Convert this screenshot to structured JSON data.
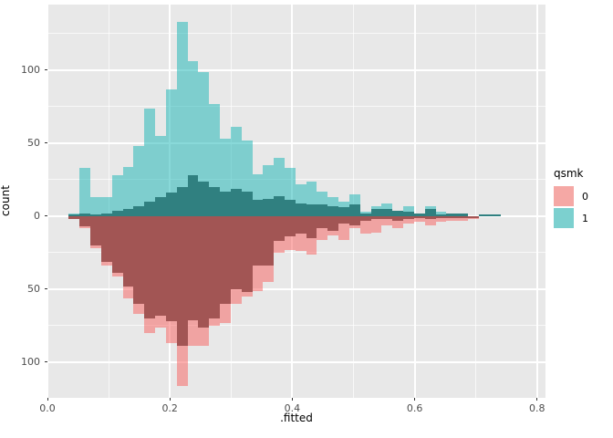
{
  "axis": {
    "x_label": ".fitted",
    "y_label": "count"
  },
  "legend": {
    "title": "qsmk",
    "items": [
      {
        "label": "0",
        "color_key": "legend_red"
      },
      {
        "label": "1",
        "color_key": "legend_teal"
      }
    ]
  },
  "colors": {
    "panel_bg": "#E8E8E8",
    "grid": "#FFFFFF",
    "gray_fill": "#4D4D4D",
    "teal_rgba": "rgba(20,180,180,0.5)",
    "red_rgba": "rgba(248,94,92,0.5)",
    "legend_red": "#F5A8A5",
    "legend_teal": "#7CD0CF",
    "tick_text": "#4D4D4D"
  },
  "chart_data": {
    "type": "bar",
    "subtype": "mirrored-histogram",
    "title": "",
    "xlabel": ".fitted",
    "ylabel": "count",
    "legend_title": "qsmk",
    "legend_position": "right",
    "grid": true,
    "xlim": [
      0,
      0.8137
    ],
    "ylim": [
      -124.4,
      145
    ],
    "x_ticks": {
      "values": [
        0,
        0.2,
        0.4,
        0.6,
        0.8
      ],
      "labels": [
        "0.0",
        "0.2",
        "0.4",
        "0.6",
        "0.8"
      ]
    },
    "y_ticks": {
      "values": [
        100,
        50,
        0,
        -50,
        -100
      ],
      "labels": [
        "100",
        "50",
        "0",
        "50",
        "100"
      ]
    },
    "x_minor": [
      0.1,
      0.3,
      0.5,
      0.7
    ],
    "y_minor": [
      125,
      75,
      25,
      -25,
      -75
    ],
    "bins": {
      "start": 0.035,
      "width": 0.017625,
      "count": 40
    },
    "series": [
      {
        "name": "qsmk-1-upper-outer",
        "side": "up",
        "shade": "light",
        "values": [
          2,
          33,
          13,
          13,
          28,
          34,
          48,
          74,
          55,
          87,
          133,
          106,
          99,
          77,
          53,
          61,
          52,
          29,
          35,
          40,
          33,
          22,
          24,
          17,
          13,
          10,
          15,
          3,
          7,
          9,
          4,
          7,
          2,
          7,
          3,
          2,
          2,
          0,
          1,
          1
        ]
      },
      {
        "name": "qsmk-1-upper-inner",
        "side": "up",
        "shade": "dark",
        "values": [
          1,
          2,
          1,
          2,
          4,
          5,
          7,
          10,
          13,
          16,
          20,
          28,
          24,
          20,
          17,
          19,
          17,
          11,
          12,
          14,
          11,
          9,
          8,
          8,
          7,
          6,
          8,
          2,
          5,
          5,
          4,
          3,
          2,
          5,
          1,
          2,
          2,
          0,
          1,
          1
        ]
      },
      {
        "name": "qsmk-0-lower-outer",
        "side": "down",
        "shade": "light",
        "values": [
          2,
          8,
          22,
          34,
          41,
          56,
          67,
          80,
          76,
          87,
          116,
          89,
          89,
          75,
          73,
          60,
          55,
          51,
          45,
          25,
          23,
          24,
          26,
          16,
          13,
          16,
          8,
          12,
          11,
          6,
          8,
          5,
          4,
          6,
          4,
          3,
          3,
          2,
          0,
          0
        ]
      },
      {
        "name": "qsmk-0-lower-inner",
        "side": "down",
        "shade": "dark",
        "values": [
          2,
          7,
          20,
          31,
          39,
          48,
          60,
          70,
          68,
          72,
          89,
          71,
          76,
          70,
          60,
          50,
          52,
          34,
          34,
          17,
          14,
          12,
          15,
          8,
          10,
          5,
          6,
          3,
          2,
          2,
          3,
          2,
          1,
          2,
          1,
          1,
          1,
          1,
          0,
          0
        ]
      }
    ]
  }
}
